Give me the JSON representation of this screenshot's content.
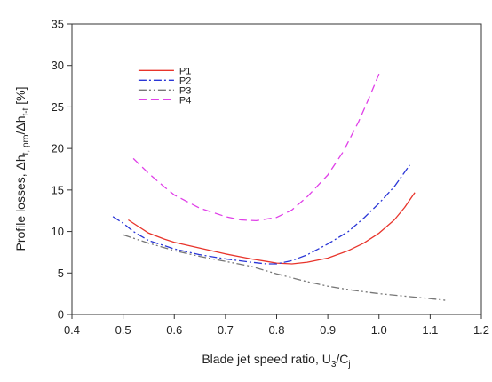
{
  "chart_data": {
    "type": "line",
    "xlabel_main": "Blade jet speed ratio, U",
    "xlabel_sub1": "3",
    "xlabel_mid": "/C",
    "xlabel_sub2": "j",
    "ylabel_main": "Profile losses,  Δh",
    "ylabel_sub1": "t, pro",
    "ylabel_mid": "/Δh",
    "ylabel_sub2": "t-t",
    "ylabel_unit": " [%]",
    "xlim": [
      0.4,
      1.2
    ],
    "ylim": [
      0,
      35
    ],
    "x_ticks": [
      "0.4",
      "0.5",
      "0.6",
      "0.7",
      "0.8",
      "0.9",
      "1.0",
      "1.1",
      "1.2"
    ],
    "y_ticks": [
      "0",
      "5",
      "10",
      "15",
      "20",
      "25",
      "30",
      "35"
    ],
    "grid": false,
    "legend_position": "upper-left",
    "series": [
      {
        "name": "P1",
        "color": "#e8342b",
        "dash": "solid",
        "points": [
          [
            0.51,
            11.4
          ],
          [
            0.53,
            10.6
          ],
          [
            0.55,
            9.8
          ],
          [
            0.58,
            9.1
          ],
          [
            0.6,
            8.7
          ],
          [
            0.65,
            8.0
          ],
          [
            0.7,
            7.3
          ],
          [
            0.75,
            6.7
          ],
          [
            0.78,
            6.4
          ],
          [
            0.8,
            6.2
          ],
          [
            0.83,
            6.1
          ],
          [
            0.86,
            6.3
          ],
          [
            0.9,
            6.8
          ],
          [
            0.94,
            7.7
          ],
          [
            0.97,
            8.6
          ],
          [
            1.0,
            9.8
          ],
          [
            1.03,
            11.4
          ],
          [
            1.05,
            12.9
          ],
          [
            1.07,
            14.7
          ]
        ]
      },
      {
        "name": "P2",
        "color": "#2a36d6",
        "dash": "dashdot",
        "points": [
          [
            0.48,
            11.8
          ],
          [
            0.5,
            11.0
          ],
          [
            0.52,
            10.0
          ],
          [
            0.55,
            8.9
          ],
          [
            0.6,
            7.9
          ],
          [
            0.65,
            7.2
          ],
          [
            0.7,
            6.7
          ],
          [
            0.75,
            6.3
          ],
          [
            0.78,
            6.1
          ],
          [
            0.8,
            6.1
          ],
          [
            0.83,
            6.5
          ],
          [
            0.86,
            7.2
          ],
          [
            0.9,
            8.5
          ],
          [
            0.94,
            10.0
          ],
          [
            0.97,
            11.6
          ],
          [
            1.0,
            13.4
          ],
          [
            1.03,
            15.4
          ],
          [
            1.06,
            18.0
          ]
        ]
      },
      {
        "name": "P3",
        "color": "#777777",
        "dash": "dashdotdot",
        "points": [
          [
            0.5,
            9.6
          ],
          [
            0.55,
            8.6
          ],
          [
            0.6,
            7.7
          ],
          [
            0.65,
            7.0
          ],
          [
            0.7,
            6.4
          ],
          [
            0.75,
            5.8
          ],
          [
            0.8,
            4.9
          ],
          [
            0.85,
            4.1
          ],
          [
            0.9,
            3.4
          ],
          [
            0.95,
            2.9
          ],
          [
            1.0,
            2.5
          ],
          [
            1.05,
            2.2
          ],
          [
            1.1,
            1.9
          ],
          [
            1.13,
            1.7
          ]
        ]
      },
      {
        "name": "P4",
        "color": "#e040e8",
        "dash": "dashed",
        "points": [
          [
            0.52,
            18.8
          ],
          [
            0.55,
            17.0
          ],
          [
            0.58,
            15.4
          ],
          [
            0.6,
            14.4
          ],
          [
            0.65,
            12.8
          ],
          [
            0.7,
            11.8
          ],
          [
            0.73,
            11.4
          ],
          [
            0.76,
            11.3
          ],
          [
            0.8,
            11.7
          ],
          [
            0.83,
            12.6
          ],
          [
            0.86,
            14.2
          ],
          [
            0.9,
            16.8
          ],
          [
            0.93,
            19.6
          ],
          [
            0.96,
            23.2
          ],
          [
            0.98,
            26.0
          ],
          [
            1.0,
            29.0
          ]
        ]
      }
    ]
  }
}
